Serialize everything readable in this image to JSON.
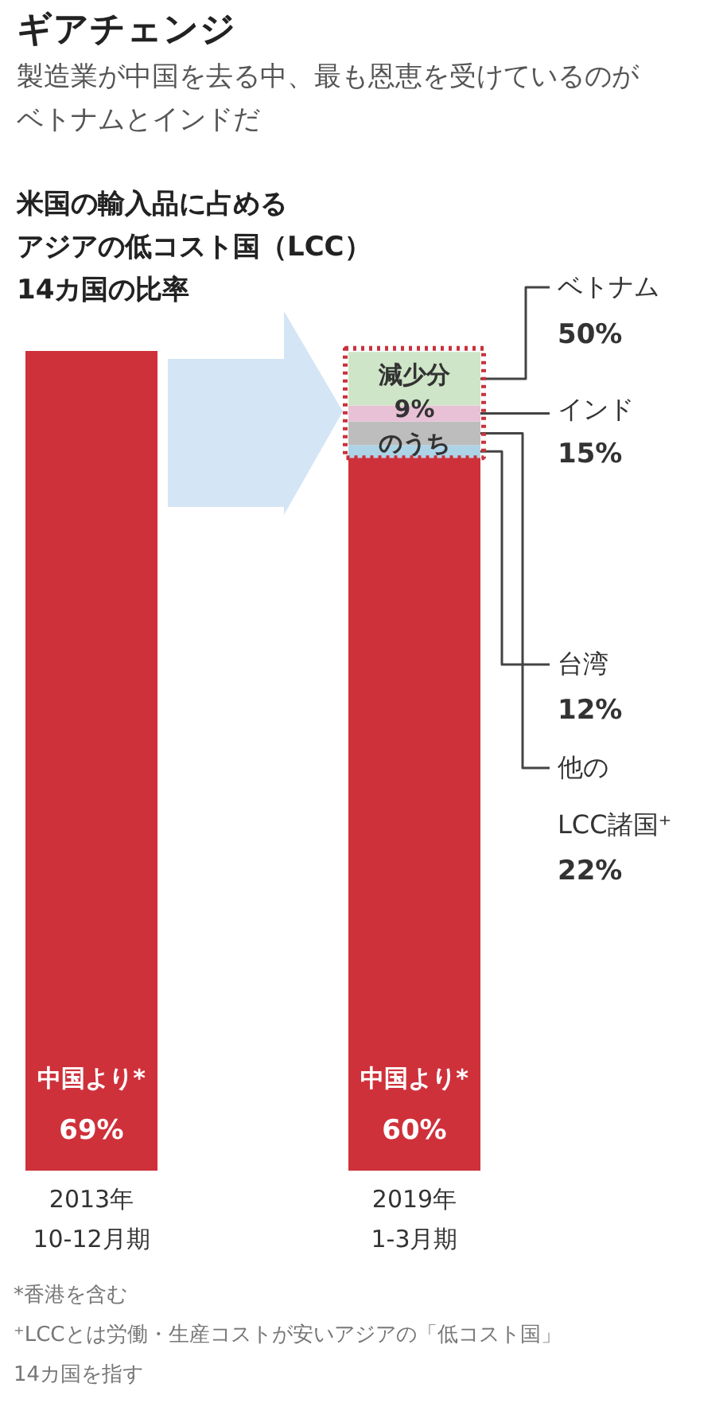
{
  "chart_data": {
    "type": "bar",
    "stacked": true,
    "title": "ギアチェンジ",
    "subtitle": "製造業が中国を去る中、最も恩恵を受けているのがベトナムとインドだ",
    "categories": [
      "2013年\n10-12月期",
      "2019年\n1-3月期"
    ],
    "series": [
      {
        "name": "中国より*",
        "color": "#cf313b",
        "values": [
          69,
          60
        ],
        "value_labels": [
          "69%",
          "60%"
        ]
      },
      {
        "name": "台湾",
        "color": "#add3e6",
        "values": [
          null,
          1.08
        ]
      },
      {
        "name": "他の\nLCC諸国⁺",
        "color": "#bdbdbd",
        "values": [
          null,
          1.98
        ]
      },
      {
        "name": "インド",
        "color": "#e8c1d6",
        "values": [
          null,
          1.35
        ]
      },
      {
        "name": "ベトナム",
        "color": "#cfe5c8",
        "values": [
          null,
          4.5
        ]
      }
    ],
    "annotations": [
      "米国の輸入品に占めるアジアの低コスト国（LCC）14カ国の比率",
      "減少分\n9%\nのうち",
      "*香港を含む",
      "⁺LCCとは労働・生産コストが安いアジアの「低コスト国」14カ国を指す",
      "12%",
      "22%",
      "15%",
      "50%"
    ]
  }
}
